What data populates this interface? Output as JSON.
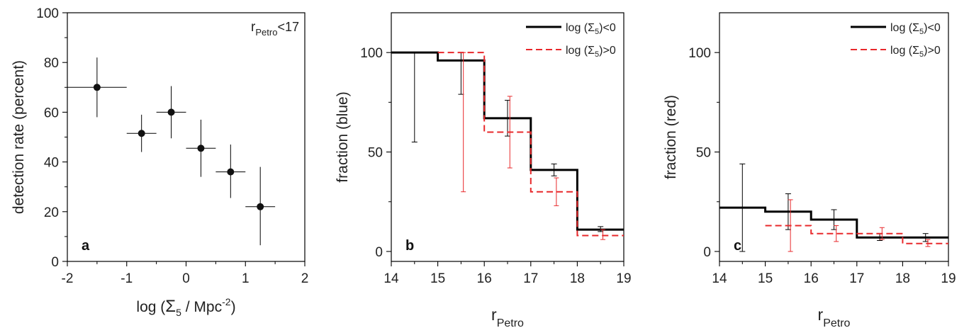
{
  "chart_data": [
    {
      "panel": "a",
      "type": "scatter",
      "xlabel": "log (Σ5 / Mpc-2)",
      "xlabel_parts": {
        "pre": "log (",
        "sym": "Σ",
        "sub": "5",
        "mid": " / Mpc",
        "sup": "-2",
        "post": ")"
      },
      "ylabel": "detection rate (percent)",
      "xlim": [
        -2,
        2
      ],
      "ylim": [
        0,
        100
      ],
      "xticks": [
        -2,
        -1,
        0,
        1,
        2
      ],
      "yticks": [
        0,
        20,
        40,
        60,
        80,
        100
      ],
      "annotation": "rPetro<17",
      "annotation_parts": {
        "base": "r",
        "sub": "Petro",
        "post": "<17"
      },
      "letter": "a",
      "points": [
        {
          "x": -1.5,
          "y": 70,
          "xerr": 0.5,
          "ylo": 58,
          "yhi": 82
        },
        {
          "x": -0.75,
          "y": 51.5,
          "xerr": 0.25,
          "ylo": 44,
          "yhi": 59
        },
        {
          "x": -0.25,
          "y": 60,
          "xerr": 0.25,
          "ylo": 49.5,
          "yhi": 70.5
        },
        {
          "x": 0.25,
          "y": 45.5,
          "xerr": 0.25,
          "ylo": 34,
          "yhi": 57
        },
        {
          "x": 0.75,
          "y": 36,
          "xerr": 0.25,
          "ylo": 25.5,
          "yhi": 47
        },
        {
          "x": 1.25,
          "y": 22,
          "xerr": 0.25,
          "ylo": 6.5,
          "yhi": 38
        }
      ]
    },
    {
      "panel": "b",
      "type": "line",
      "xlabel": "rPetro",
      "xlabel_parts": {
        "base": "r",
        "sub": "Petro"
      },
      "ylabel": "fraction (blue)",
      "xlim": [
        14,
        19
      ],
      "ylim": [
        -5,
        120
      ],
      "xticks": [
        14,
        15,
        16,
        17,
        18,
        19
      ],
      "yticks": [
        0,
        50,
        100
      ],
      "letter": "b",
      "series": [
        {
          "name": "log (Σ5)<0",
          "name_parts": {
            "pre": "log (",
            "sym": "Σ",
            "sub": "5",
            "post": ")<0"
          },
          "style": "solid",
          "color": "#000000",
          "bins": [
            [
              14,
              15,
              100
            ],
            [
              15,
              16,
              96
            ],
            [
              16,
              17,
              67
            ],
            [
              17,
              18,
              41
            ],
            [
              18,
              19,
              11
            ]
          ],
          "errors": [
            {
              "x": 14.5,
              "lo": 55,
              "hi": 100
            },
            {
              "x": 15.5,
              "lo": 79,
              "hi": 100
            },
            {
              "x": 16.5,
              "lo": 58,
              "hi": 76
            },
            {
              "x": 17.5,
              "lo": 38,
              "hi": 44
            },
            {
              "x": 18.5,
              "lo": 10,
              "hi": 12.5
            }
          ]
        },
        {
          "name": "log (Σ5)>0",
          "name_parts": {
            "pre": "log (",
            "sym": "Σ",
            "sub": "5",
            "post": ")>0"
          },
          "style": "dashed",
          "color": "#e8282b",
          "bins": [
            [
              15,
              16,
              100
            ],
            [
              16,
              17,
              60
            ],
            [
              17,
              18,
              30
            ],
            [
              18,
              19,
              8
            ]
          ],
          "errors": [
            {
              "x": 15.55,
              "lo": 30,
              "hi": 100
            },
            {
              "x": 16.55,
              "lo": 42,
              "hi": 78
            },
            {
              "x": 17.55,
              "lo": 23,
              "hi": 37
            },
            {
              "x": 18.55,
              "lo": 6,
              "hi": 11
            }
          ]
        }
      ]
    },
    {
      "panel": "c",
      "type": "line",
      "xlabel": "rPetro",
      "xlabel_parts": {
        "base": "r",
        "sub": "Petro"
      },
      "ylabel": "fraction (red)",
      "xlim": [
        14,
        19
      ],
      "ylim": [
        -5,
        120
      ],
      "xticks": [
        14,
        15,
        16,
        17,
        18,
        19
      ],
      "yticks": [
        0,
        50,
        100
      ],
      "letter": "c",
      "series": [
        {
          "name": "log (Σ5)<0",
          "name_parts": {
            "pre": "log (",
            "sym": "Σ",
            "sub": "5",
            "post": ")<0"
          },
          "style": "solid",
          "color": "#000000",
          "bins": [
            [
              14,
              15,
              22
            ],
            [
              15,
              16,
              20
            ],
            [
              16,
              17,
              16
            ],
            [
              17,
              18,
              7
            ],
            [
              18,
              19,
              7
            ]
          ],
          "errors": [
            {
              "x": 14.5,
              "lo": 0,
              "hi": 44
            },
            {
              "x": 15.5,
              "lo": 11,
              "hi": 29
            },
            {
              "x": 16.5,
              "lo": 11,
              "hi": 21
            },
            {
              "x": 17.5,
              "lo": 5.5,
              "hi": 9
            },
            {
              "x": 18.5,
              "lo": 5,
              "hi": 9
            }
          ]
        },
        {
          "name": "log (Σ5)>0",
          "name_parts": {
            "pre": "log (",
            "sym": "Σ",
            "sub": "5",
            "post": ")>0"
          },
          "style": "dashed",
          "color": "#e8282b",
          "bins": [
            [
              15,
              16,
              13
            ],
            [
              16,
              17,
              9
            ],
            [
              17,
              18,
              9
            ],
            [
              18,
              19,
              4
            ]
          ],
          "errors": [
            {
              "x": 15.55,
              "lo": 0,
              "hi": 26
            },
            {
              "x": 16.55,
              "lo": 5,
              "hi": 13
            },
            {
              "x": 17.55,
              "lo": 6,
              "hi": 12
            },
            {
              "x": 18.55,
              "lo": 2.5,
              "hi": 6
            }
          ]
        }
      ]
    }
  ]
}
